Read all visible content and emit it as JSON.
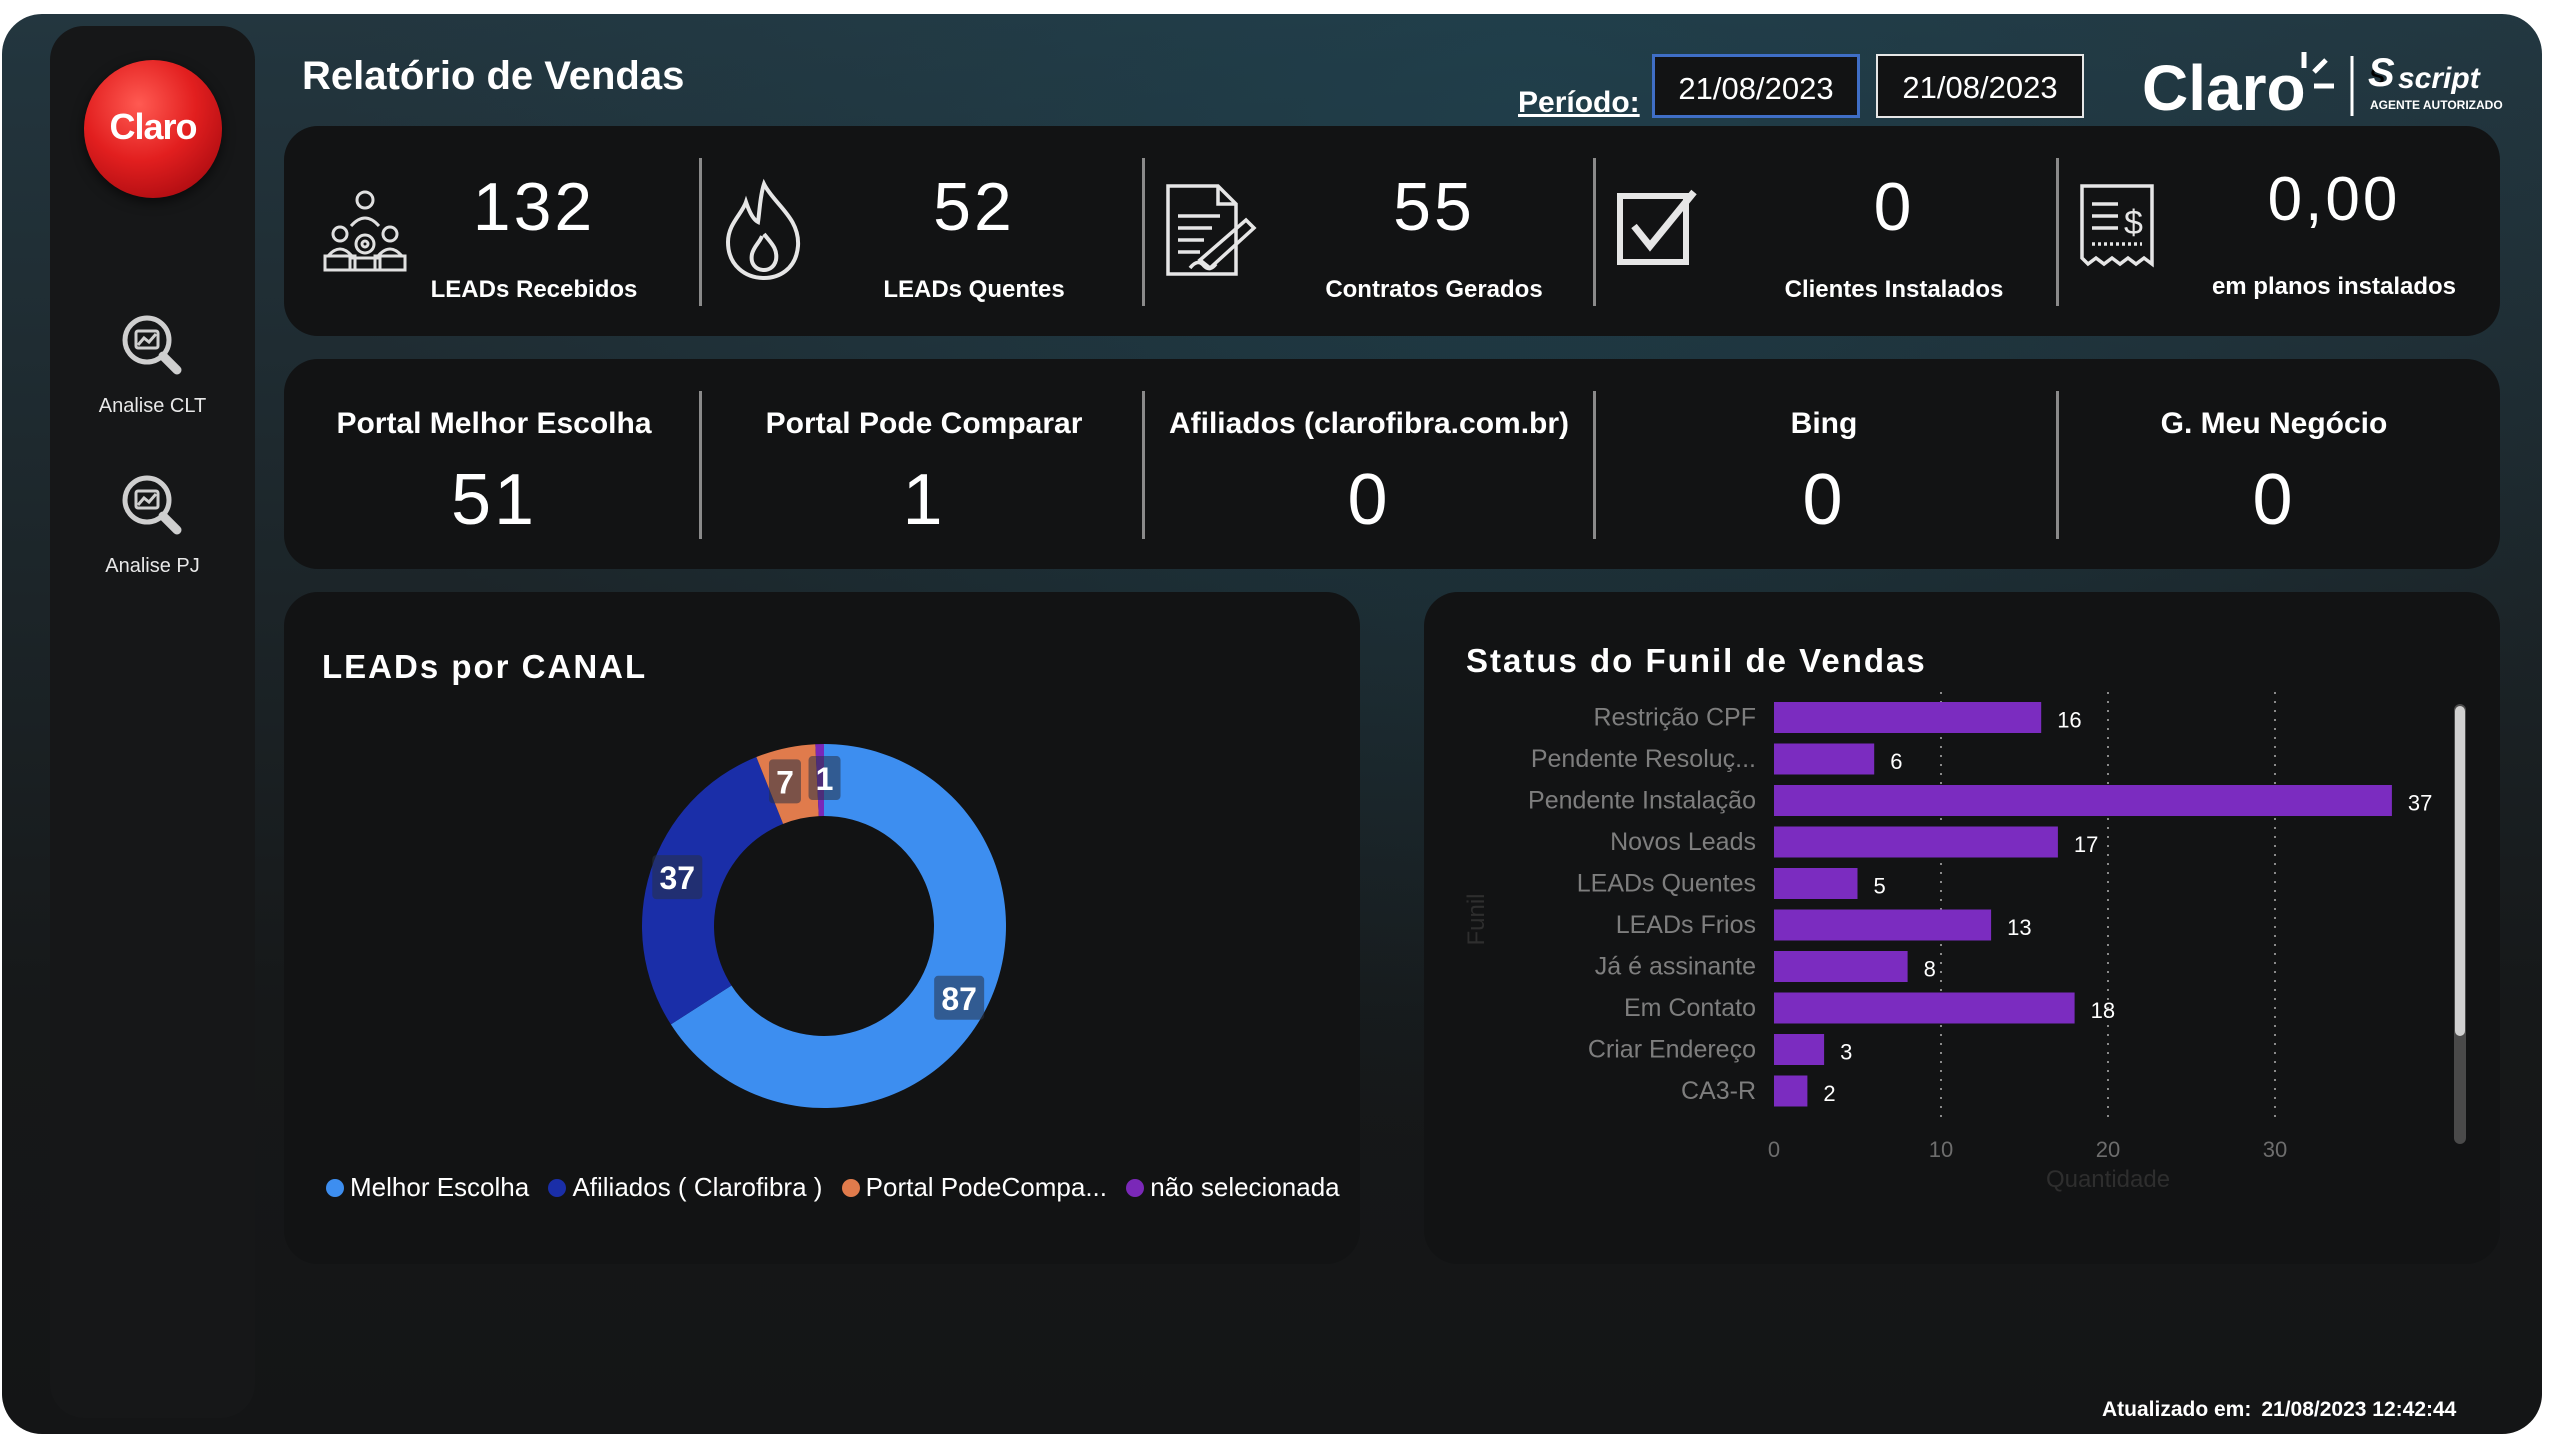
{
  "title": "Relatório de Vendas",
  "periodo_label": "Período:",
  "date_start": "21/08/2023",
  "date_end": "21/08/2023",
  "brand": {
    "claro": "Claro",
    "script": "script",
    "script_sub": "AGENTE AUTORIZADO"
  },
  "logo_text": "Claro",
  "sidebar": {
    "items": [
      {
        "label": "Analise CLT",
        "icon": "search-report-icon"
      },
      {
        "label": "Analise PJ",
        "icon": "search-report-icon"
      }
    ]
  },
  "kpis": [
    {
      "value": "132",
      "label": "LEADs Recebidos",
      "icon": "team-network-icon"
    },
    {
      "value": "52",
      "label": "LEADs Quentes",
      "icon": "flame-icon"
    },
    {
      "value": "55",
      "label": "Contratos Gerados",
      "icon": "contract-sign-icon"
    },
    {
      "value": "0",
      "label": "Clientes Instalados",
      "icon": "checkbox-icon"
    },
    {
      "value": "0,00",
      "label": "em planos instalados",
      "icon": "receipt-icon"
    }
  ],
  "channels": [
    {
      "name": "Portal Melhor Escolha",
      "value": "51"
    },
    {
      "name": "Portal Pode Comparar",
      "value": "1"
    },
    {
      "name": "Afiliados (clarofibra.com.br)",
      "value": "0"
    },
    {
      "name": "Bing",
      "value": "0"
    },
    {
      "name": "G. Meu Negócio",
      "value": "0"
    }
  ],
  "footer": {
    "label": "Atualizado em:",
    "value": "21/08/2023 12:42:44"
  },
  "chart_data": [
    {
      "type": "pie",
      "title": "LEADs por CANAL",
      "donut": true,
      "legend_position": "bottom",
      "series": [
        {
          "name": "Melhor Escolha",
          "value": 87,
          "color": "#3d8ef0"
        },
        {
          "name": "Afiliados ( Clarofibra )",
          "value": 37,
          "color": "#1a2ea8"
        },
        {
          "name": "Portal PodeCompa...",
          "value": 7,
          "color": "#e07b4c"
        },
        {
          "name": "não selecionada",
          "value": 1,
          "color": "#7a28b8"
        }
      ]
    },
    {
      "type": "bar",
      "orientation": "horizontal",
      "title": "Status do Funil de Vendas",
      "xlabel": "Quantidade",
      "ylabel": "Funil",
      "xlim": [
        0,
        37
      ],
      "xticks": [
        0,
        10,
        20,
        30
      ],
      "grid": true,
      "color": "#7b2cc0",
      "categories": [
        "Restrição CPF",
        "Pendente Resoluç...",
        "Pendente Instalação",
        "Novos Leads",
        "LEADs Quentes",
        "LEADs Frios",
        "Já é assinante",
        "Em Contato",
        "Criar Endereço",
        "CA3-R"
      ],
      "values": [
        16,
        6,
        37,
        17,
        5,
        13,
        8,
        18,
        3,
        2
      ]
    }
  ]
}
